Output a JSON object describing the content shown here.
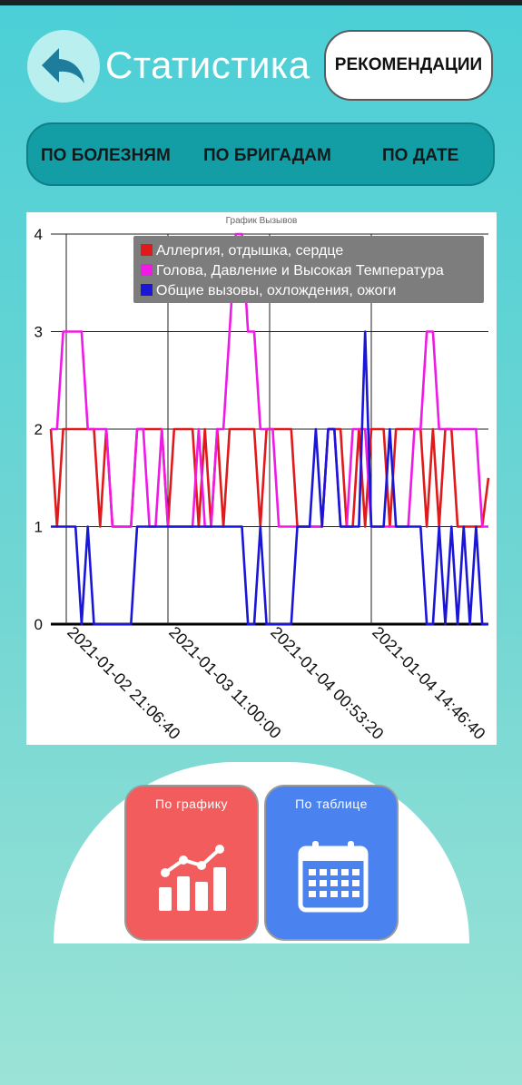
{
  "header": {
    "title": "Статистика",
    "recommendations_label": "РЕКОМЕНДАЦИИ"
  },
  "tabs": [
    {
      "label": "ПО БОЛЕЗНЯМ"
    },
    {
      "label": "ПО БРИГАДАМ"
    },
    {
      "label": "ПО ДАТЕ"
    }
  ],
  "icons": {
    "back": "back-arrow-icon",
    "graph": "chart-icon",
    "table": "calendar-icon"
  },
  "colors": {
    "background_top": "#4bcfd6",
    "tab_bar": "#139ea6",
    "graph_button": "#f25c5c",
    "table_button": "#4a82f0"
  },
  "chart_data": {
    "type": "line",
    "title": "График Вызывов",
    "xlabel": "",
    "ylabel": "",
    "ylim": [
      0,
      4
    ],
    "yticks": [
      "0",
      "1",
      "2",
      "3",
      "4"
    ],
    "xtick_labels": [
      "2021-01-02 21:06:40",
      "2021-01-03 11:00:00",
      "2021-01-04 00:53:20",
      "2021-01-04 14:46:40"
    ],
    "legend_position": "top-right",
    "grid": true,
    "series": [
      {
        "name": "Аллергия, отдышка, сердце",
        "color": "#e0191b",
        "values": [
          2,
          1,
          2,
          2,
          2,
          2,
          2,
          2,
          1,
          2,
          1,
          1,
          1,
          1,
          2,
          2,
          2,
          2,
          2,
          1,
          2,
          2,
          2,
          2,
          1,
          2,
          1,
          2,
          1,
          2,
          2,
          2,
          2,
          2,
          1,
          2,
          2,
          2,
          2,
          2,
          1,
          1,
          1,
          1,
          1,
          2,
          2,
          2,
          1,
          1,
          2,
          1,
          2,
          2,
          2,
          1,
          2,
          2,
          2,
          2,
          2,
          1,
          2,
          1,
          2,
          2,
          1,
          1,
          1,
          1,
          1,
          1.5
        ]
      },
      {
        "name": "Голова, Давление и Высокая Температура",
        "color": "#f01ae6",
        "values": [
          2,
          2,
          3,
          3,
          3,
          3,
          2,
          2,
          2,
          2,
          1,
          1,
          1,
          1,
          2,
          2,
          1,
          1,
          2,
          1,
          1,
          1,
          1,
          1,
          2,
          1,
          1,
          2,
          2,
          3,
          4,
          4,
          3,
          3,
          2,
          2,
          2,
          1,
          1,
          1,
          1,
          1,
          1,
          1,
          1,
          2,
          2,
          1,
          1,
          2,
          2,
          2,
          1,
          1,
          1,
          1,
          1,
          1,
          1,
          2,
          2,
          3,
          3,
          2,
          2,
          2,
          2,
          2,
          2,
          2,
          1,
          1
        ]
      },
      {
        "name": "Общие вызовы, охлождения, ожоги",
        "color": "#1a16d8",
        "values": [
          1,
          1,
          1,
          1,
          1,
          0,
          1,
          0,
          0,
          0,
          0,
          0,
          0,
          0,
          1,
          1,
          1,
          1,
          1,
          1,
          1,
          1,
          1,
          1,
          1,
          1,
          1,
          1,
          1,
          1,
          1,
          1,
          0,
          0,
          1,
          0,
          0,
          0,
          0,
          0,
          1,
          1,
          1,
          2,
          1,
          2,
          2,
          1,
          1,
          1,
          1,
          3,
          1,
          1,
          1,
          2,
          1,
          1,
          1,
          1,
          1,
          0,
          0,
          1,
          0,
          1,
          0,
          1,
          0,
          1,
          0,
          0
        ]
      }
    ]
  },
  "modes": {
    "graph_label": "По графику",
    "table_label": "По таблице"
  }
}
